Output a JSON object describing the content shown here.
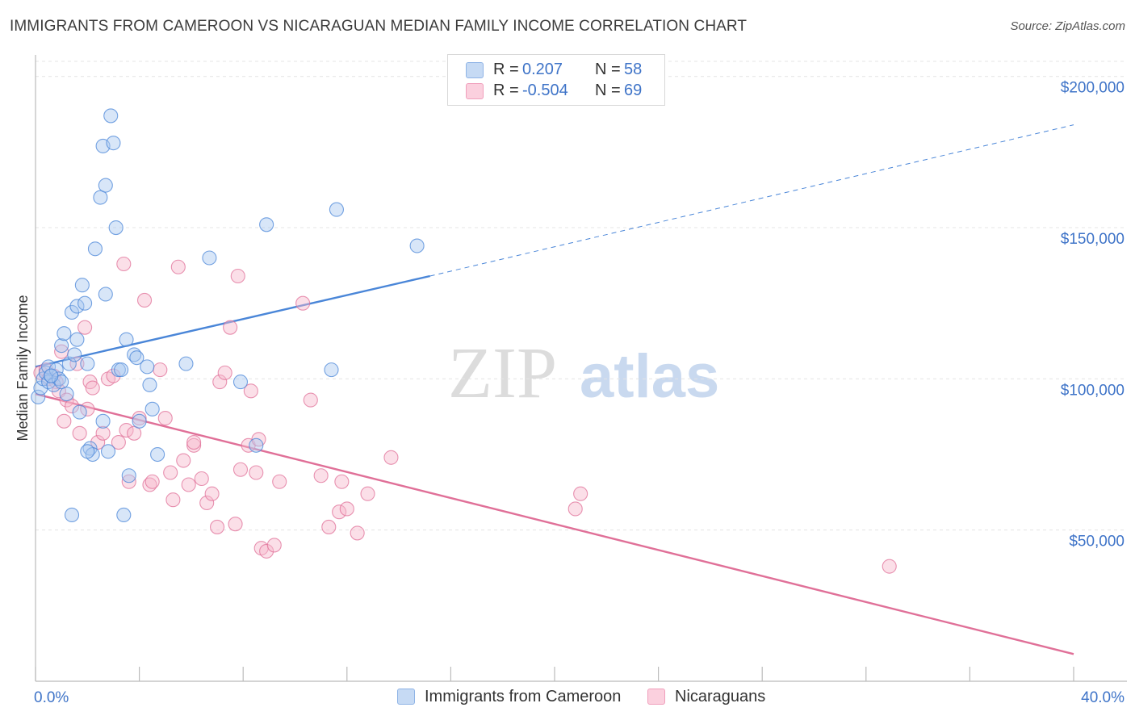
{
  "title": "IMMIGRANTS FROM CAMEROON VS NICARAGUAN MEDIAN FAMILY INCOME CORRELATION CHART",
  "source": "Source: ZipAtlas.com",
  "watermark": {
    "zip": "ZIP",
    "atlas": "atlas"
  },
  "legend": {
    "rows": [
      {
        "r_label": "R =",
        "r_value": "0.207",
        "n_label": "N =",
        "n_value": "58",
        "color": "#a8c8f0"
      },
      {
        "r_label": "R =",
        "r_value": "-0.504",
        "n_label": "N =",
        "n_value": "69",
        "color": "#f6b8cc"
      }
    ]
  },
  "bottom_legend": [
    {
      "label": "Immigrants from Cameroon",
      "color": "#a8c8f0"
    },
    {
      "label": "Nicaraguans",
      "color": "#f6b8cc"
    }
  ],
  "chart_data": {
    "type": "scatter",
    "title": "IMMIGRANTS FROM CAMEROON VS NICARAGUAN MEDIAN FAMILY INCOME CORRELATION CHART",
    "xlabel": "",
    "ylabel": "Median Family Income",
    "xlim": [
      0,
      40
    ],
    "ylim": [
      0,
      205000
    ],
    "x_tick_labels": [
      "0.0%",
      "40.0%"
    ],
    "y_ticks": [
      {
        "value": 50000,
        "label": "$50,000"
      },
      {
        "value": 100000,
        "label": "$100,000"
      },
      {
        "value": 150000,
        "label": "$150,000"
      },
      {
        "value": 200000,
        "label": "$200,000"
      }
    ],
    "grid": true,
    "series": [
      {
        "name": "Immigrants from Cameroon",
        "color": "#4a86d8",
        "fill": "#a8c8f0",
        "trend": {
          "x": [
            0,
            15.2
          ],
          "y": [
            104000,
            134000
          ],
          "dashed_to": [
            40,
            184000
          ]
        },
        "points": [
          [
            0.1,
            94000
          ],
          [
            0.2,
            97000
          ],
          [
            0.3,
            100000
          ],
          [
            0.4,
            102000
          ],
          [
            0.5,
            104000
          ],
          [
            0.5,
            99000
          ],
          [
            0.6,
            101000
          ],
          [
            0.7,
            98000
          ],
          [
            0.8,
            103000
          ],
          [
            0.9,
            100000
          ],
          [
            1.0,
            99000
          ],
          [
            1.0,
            111000
          ],
          [
            1.1,
            115000
          ],
          [
            1.2,
            95000
          ],
          [
            1.3,
            105000
          ],
          [
            1.4,
            122000
          ],
          [
            1.5,
            108000
          ],
          [
            1.6,
            124000
          ],
          [
            1.6,
            113000
          ],
          [
            1.7,
            89000
          ],
          [
            1.8,
            131000
          ],
          [
            1.9,
            125000
          ],
          [
            2.0,
            105000
          ],
          [
            2.1,
            77000
          ],
          [
            2.2,
            75000
          ],
          [
            2.3,
            143000
          ],
          [
            2.5,
            160000
          ],
          [
            2.6,
            177000
          ],
          [
            2.6,
            86000
          ],
          [
            2.7,
            128000
          ],
          [
            2.7,
            164000
          ],
          [
            2.8,
            76000
          ],
          [
            2.9,
            187000
          ],
          [
            3.0,
            178000
          ],
          [
            3.1,
            150000
          ],
          [
            3.2,
            103000
          ],
          [
            3.3,
            103000
          ],
          [
            3.5,
            113000
          ],
          [
            3.6,
            68000
          ],
          [
            3.8,
            108000
          ],
          [
            3.9,
            107000
          ],
          [
            4.0,
            86000
          ],
          [
            4.3,
            104000
          ],
          [
            4.4,
            98000
          ],
          [
            4.5,
            90000
          ],
          [
            4.7,
            75000
          ],
          [
            5.8,
            105000
          ],
          [
            6.7,
            140000
          ],
          [
            7.9,
            99000
          ],
          [
            8.5,
            78000
          ],
          [
            8.9,
            151000
          ],
          [
            11.4,
            103000
          ],
          [
            11.6,
            156000
          ],
          [
            14.7,
            144000
          ],
          [
            1.4,
            55000
          ],
          [
            3.4,
            55000
          ],
          [
            0.6,
            101000
          ],
          [
            2.0,
            76000
          ]
        ]
      },
      {
        "name": "Nicaraguans",
        "color": "#e07098",
        "fill": "#f6b8cc",
        "trend": {
          "x": [
            0,
            40
          ],
          "y": [
            95000,
            9000
          ]
        },
        "points": [
          [
            0.2,
            102000
          ],
          [
            0.4,
            103000
          ],
          [
            0.5,
            100000
          ],
          [
            0.7,
            101000
          ],
          [
            0.8,
            99000
          ],
          [
            0.9,
            96000
          ],
          [
            1.0,
            109000
          ],
          [
            1.1,
            86000
          ],
          [
            1.2,
            93000
          ],
          [
            1.4,
            91000
          ],
          [
            1.6,
            105000
          ],
          [
            1.7,
            82000
          ],
          [
            1.9,
            117000
          ],
          [
            2.0,
            90000
          ],
          [
            2.1,
            99000
          ],
          [
            2.2,
            97000
          ],
          [
            2.4,
            79000
          ],
          [
            2.6,
            82000
          ],
          [
            2.8,
            100000
          ],
          [
            3.0,
            101000
          ],
          [
            3.2,
            79000
          ],
          [
            3.4,
            138000
          ],
          [
            3.5,
            83000
          ],
          [
            3.6,
            66000
          ],
          [
            3.8,
            82000
          ],
          [
            4.0,
            87000
          ],
          [
            4.2,
            126000
          ],
          [
            4.4,
            65000
          ],
          [
            4.5,
            66000
          ],
          [
            4.8,
            103000
          ],
          [
            5.0,
            87000
          ],
          [
            5.2,
            69000
          ],
          [
            5.3,
            60000
          ],
          [
            5.5,
            137000
          ],
          [
            5.7,
            73000
          ],
          [
            5.9,
            65000
          ],
          [
            6.1,
            78000
          ],
          [
            6.1,
            79000
          ],
          [
            6.4,
            67000
          ],
          [
            6.6,
            59000
          ],
          [
            6.8,
            62000
          ],
          [
            7.0,
            51000
          ],
          [
            7.1,
            99000
          ],
          [
            7.3,
            102000
          ],
          [
            7.5,
            117000
          ],
          [
            7.7,
            52000
          ],
          [
            7.8,
            134000
          ],
          [
            7.9,
            70000
          ],
          [
            8.2,
            78000
          ],
          [
            8.3,
            96000
          ],
          [
            8.5,
            69000
          ],
          [
            8.6,
            80000
          ],
          [
            8.7,
            44000
          ],
          [
            8.9,
            43000
          ],
          [
            9.2,
            45000
          ],
          [
            9.4,
            66000
          ],
          [
            10.3,
            125000
          ],
          [
            10.6,
            93000
          ],
          [
            11.0,
            68000
          ],
          [
            11.3,
            51000
          ],
          [
            11.7,
            56000
          ],
          [
            11.8,
            66000
          ],
          [
            12.0,
            57000
          ],
          [
            12.4,
            49000
          ],
          [
            12.8,
            62000
          ],
          [
            13.7,
            74000
          ],
          [
            20.8,
            57000
          ],
          [
            21.0,
            62000
          ],
          [
            32.9,
            38000
          ]
        ]
      }
    ]
  }
}
